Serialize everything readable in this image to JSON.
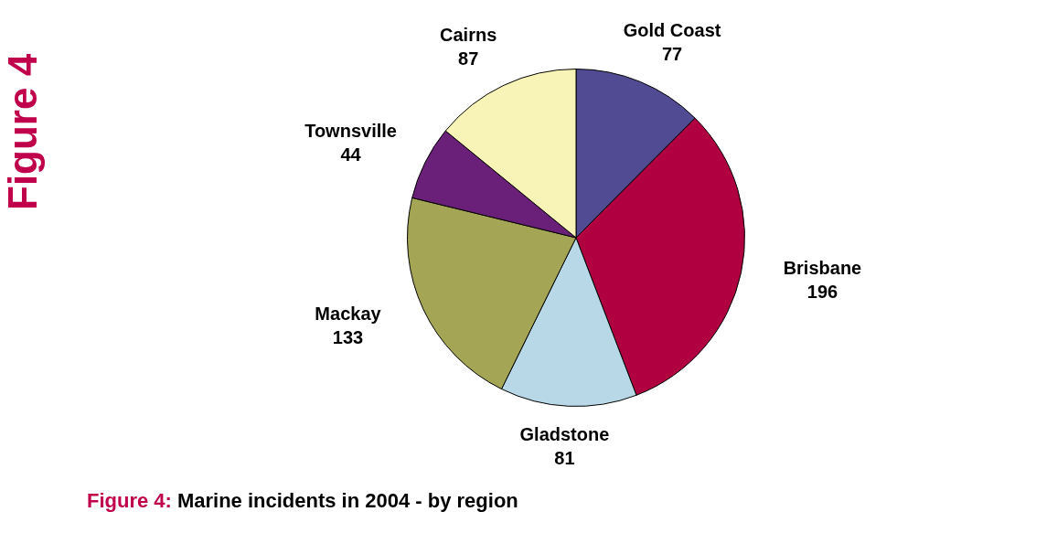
{
  "chart_data": {
    "type": "pie",
    "title": "Marine incidents in 2004 - by region",
    "annotations": [
      "Figure 4",
      "Figure 4:"
    ],
    "categories": [
      "Gold Coast",
      "Brisbane",
      "Gladstone",
      "Mackay",
      "Townsville",
      "Cairns"
    ],
    "values": [
      77,
      196,
      81,
      133,
      44,
      87
    ],
    "colors": [
      "#514b94",
      "#b00040",
      "#b8d8e8",
      "#a4a656",
      "#6a2078",
      "#f8f4b8"
    ],
    "data_labels": true,
    "legend": false
  }
}
